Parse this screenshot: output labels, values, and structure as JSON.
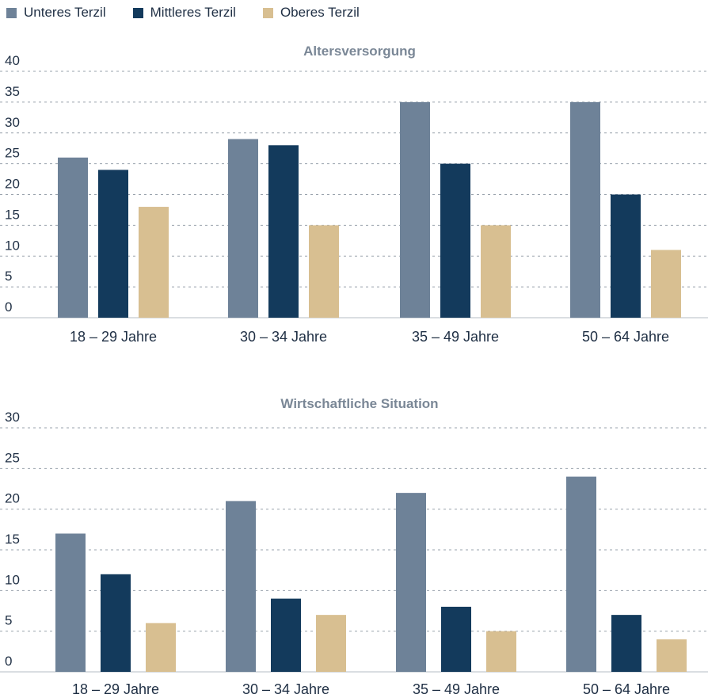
{
  "legend": {
    "items": [
      {
        "label": "Unteres Terzil",
        "color": "#6e8298"
      },
      {
        "label": "Mittleres Terzil",
        "color": "#133a5c"
      },
      {
        "label": "Oberes Terzil",
        "color": "#d8bf91"
      }
    ]
  },
  "chart_data": [
    {
      "type": "bar",
      "title": "Altersversorgung",
      "categories": [
        "18 – 29 Jahre",
        "30 – 34 Jahre",
        "35 – 49 Jahre",
        "50 – 64 Jahre"
      ],
      "series": [
        {
          "name": "Unteres Terzil",
          "values": [
            26,
            29,
            35,
            35
          ],
          "color": "#6e8298"
        },
        {
          "name": "Mittleres Terzil",
          "values": [
            24,
            28,
            25,
            20
          ],
          "color": "#133a5c"
        },
        {
          "name": "Oberes Terzil",
          "values": [
            18,
            15,
            15,
            11
          ],
          "color": "#d8bf91"
        }
      ],
      "ylim": [
        0,
        40
      ],
      "yticks": [
        0,
        5,
        10,
        15,
        20,
        25,
        30,
        35,
        40
      ],
      "xlabel": "",
      "ylabel": "",
      "grid": true
    },
    {
      "type": "bar",
      "title": "Wirtschaftliche Situation",
      "categories": [
        "18 – 29 Jahre",
        "30 – 34 Jahre",
        "35 – 49 Jahre",
        "50 – 64 Jahre"
      ],
      "series": [
        {
          "name": "Unteres Terzil",
          "values": [
            17,
            21,
            22,
            24
          ],
          "color": "#6e8298"
        },
        {
          "name": "Mittleres Terzil",
          "values": [
            12,
            9,
            8,
            7
          ],
          "color": "#133a5c"
        },
        {
          "name": "Oberes Terzil",
          "values": [
            6,
            7,
            5,
            4
          ],
          "color": "#d8bf91"
        }
      ],
      "ylim": [
        0,
        30
      ],
      "yticks": [
        0,
        5,
        10,
        15,
        20,
        25,
        30
      ],
      "xlabel": "",
      "ylabel": "",
      "grid": true
    }
  ]
}
